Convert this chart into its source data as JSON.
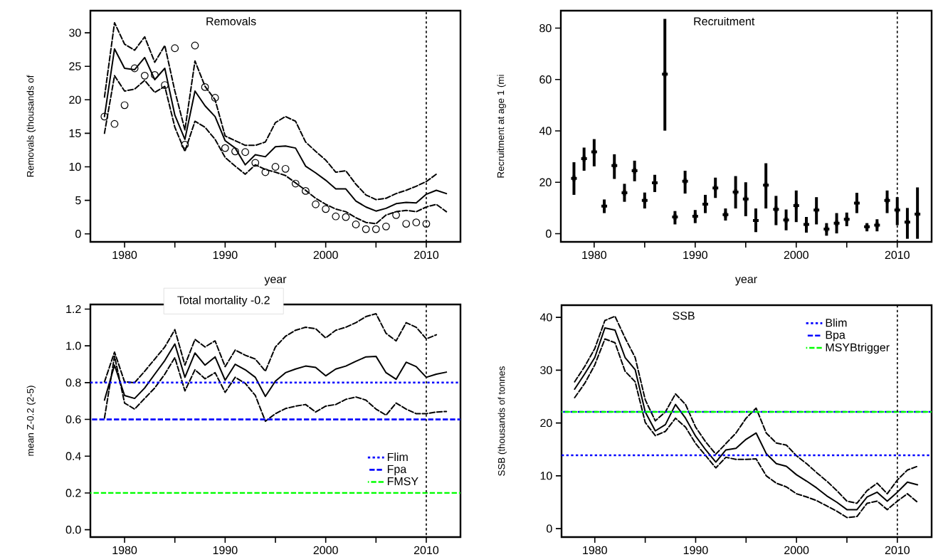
{
  "chart_data": [
    {
      "type": "line",
      "title": "Removals",
      "xlabel": "year",
      "ylabel": "Removals (thousands of",
      "x": [
        1978,
        1979,
        1980,
        1981,
        1982,
        1983,
        1984,
        1985,
        1986,
        1987,
        1988,
        1989,
        1990,
        1991,
        1992,
        1993,
        1994,
        1995,
        1996,
        1997,
        1998,
        1999,
        2000,
        2001,
        2002,
        2003,
        2004,
        2005,
        2006,
        2007,
        2008,
        2009,
        2010,
        2011,
        2012
      ],
      "series": [
        {
          "color": "#000000",
          "line_style": "solid",
          "values": [
            17.5,
            27.6,
            24.7,
            24.5,
            26.3,
            23.0,
            24.7,
            17.7,
            14.1,
            21.3,
            19.1,
            17.5,
            13.9,
            12.8,
            10.3,
            11.8,
            11.5,
            13.0,
            13.1,
            12.8,
            10.1,
            9.1,
            8.0,
            6.7,
            6.7,
            4.9,
            4.0,
            3.4,
            3.8,
            4.5,
            4.7,
            4.6,
            5.9,
            6.5,
            6.0
          ]
        },
        {
          "color": "#000000",
          "line_style": "dashed",
          "values": [
            20.4,
            31.5,
            28.3,
            27.4,
            29.4,
            25.6,
            28.1,
            21.3,
            15.5,
            25.8,
            22.0,
            20.0,
            14.6,
            13.9,
            13.2,
            13.2,
            13.7,
            16.6,
            17.5,
            16.8,
            13.7,
            12.3,
            11.0,
            9.2,
            9.4,
            7.4,
            5.8,
            5.1,
            5.3,
            6.0,
            6.5,
            7.1,
            7.8,
            8.9,
            null
          ]
        },
        {
          "color": "#000000",
          "line_style": "dashed",
          "values": [
            15.0,
            23.6,
            21.3,
            21.6,
            22.9,
            21.1,
            22.0,
            15.9,
            12.3,
            16.8,
            15.9,
            14.1,
            11.4,
            10.1,
            8.9,
            10.3,
            9.6,
            9.2,
            8.7,
            7.6,
            6.5,
            5.3,
            4.4,
            3.7,
            3.3,
            2.4,
            1.7,
            1.5,
            2.8,
            3.3,
            3.5,
            3.3,
            4.0,
            4.4,
            3.3
          ]
        },
        {
          "type": "scatter",
          "color": "#000000",
          "marker": "circle",
          "x": [
            1978,
            1979,
            1980,
            1981,
            1982,
            1983,
            1984,
            1985,
            1986,
            1987,
            1988,
            1989,
            1990,
            1991,
            1992,
            1993,
            1994,
            1995,
            1996,
            1997,
            1998,
            1999,
            2000,
            2001,
            2002,
            2003,
            2004,
            2005,
            2006,
            2007,
            2008,
            2009,
            2010
          ],
          "values": [
            17.5,
            16.4,
            19.2,
            24.7,
            23.6,
            23.7,
            22.2,
            27.7,
            13.3,
            28.1,
            21.9,
            20.3,
            12.8,
            12.3,
            12.2,
            10.6,
            9.2,
            10.0,
            9.7,
            7.5,
            6.4,
            4.4,
            3.7,
            2.6,
            2.5,
            1.4,
            0.7,
            0.7,
            1.1,
            2.8,
            1.5,
            1.7,
            1.5
          ]
        }
      ],
      "xlim": [
        1976.6,
        2013.4
      ],
      "ylim": [
        -1.2,
        33.3
      ],
      "xticks": [
        1980,
        {
          "value": 1985,
          "label": null
        },
        1990,
        {
          "value": 1995,
          "label": null
        },
        2000,
        {
          "value": 2005,
          "label": null
        },
        2010
      ],
      "yticks": [
        0,
        5,
        10,
        15,
        20,
        25,
        30
      ],
      "ref_lines": [
        {
          "axis": "x",
          "value": 2010,
          "color": "#000000",
          "line_style": "dotted"
        }
      ]
    },
    {
      "type": "scatter",
      "title": "Recruitment",
      "xlabel": "year",
      "ylabel": "Recruitment at age 1 (mi",
      "x": [
        1978,
        1979,
        1980,
        1981,
        1982,
        1983,
        1984,
        1985,
        1986,
        1987,
        1988,
        1989,
        1990,
        1991,
        1992,
        1993,
        1994,
        1995,
        1996,
        1997,
        1998,
        1999,
        2000,
        2001,
        2002,
        2003,
        2004,
        2005,
        2006,
        2007,
        2008,
        2009,
        2010,
        2011,
        2012
      ],
      "values": [
        21.5,
        29.2,
        31.8,
        10.7,
        26.5,
        15.9,
        24.5,
        12.9,
        19.8,
        62.1,
        6.5,
        20.4,
        6.8,
        11.5,
        17.8,
        7.4,
        16.2,
        13.5,
        5.1,
        18.9,
        9.5,
        5.3,
        10.9,
        3.6,
        9.2,
        1.8,
        4.1,
        5.6,
        11.9,
        2.7,
        3.3,
        12.9,
        9.2,
        4.5,
        7.6
      ],
      "errors": [
        [
          15.1,
          27.8
        ],
        [
          24.5,
          33.5
        ],
        [
          26.2,
          36.8
        ],
        [
          8.0,
          13.3
        ],
        [
          21.3,
          30.9
        ],
        [
          12.4,
          19.4
        ],
        [
          20.4,
          28.4
        ],
        [
          9.8,
          16.0
        ],
        [
          16.2,
          22.9
        ],
        [
          40.1,
          83.6
        ],
        [
          3.6,
          8.8
        ],
        [
          15.6,
          24.5
        ],
        [
          4.1,
          9.2
        ],
        [
          8.0,
          15.1
        ],
        [
          13.9,
          21.8
        ],
        [
          5.1,
          9.8
        ],
        [
          9.8,
          22.4
        ],
        [
          6.8,
          20.0
        ],
        [
          0.6,
          9.8
        ],
        [
          9.8,
          27.4
        ],
        [
          3.3,
          14.7
        ],
        [
          1.3,
          9.4
        ],
        [
          4.5,
          16.8
        ],
        [
          0.4,
          6.5
        ],
        [
          3.6,
          14.2
        ],
        [
          -0.8,
          4.1
        ],
        [
          0.1,
          8.0
        ],
        [
          2.9,
          8.2
        ],
        [
          8.0,
          15.9
        ],
        [
          0.9,
          4.1
        ],
        [
          0.9,
          5.6
        ],
        [
          8.0,
          16.8
        ],
        [
          3.3,
          14.2
        ],
        [
          -2.0,
          10.0
        ],
        [
          -2.0,
          18.0
        ]
      ],
      "color": "#000000",
      "marker": "cross",
      "xlim": [
        1976.7,
        2013.4
      ],
      "ylim": [
        -3.2,
        86.8
      ],
      "xticks": [
        1980,
        {
          "value": 1985,
          "label": null
        },
        1990,
        {
          "value": 1995,
          "label": null
        },
        2000,
        {
          "value": 2005,
          "label": null
        },
        2010
      ],
      "yticks": [
        0,
        20,
        40,
        60,
        80
      ],
      "ref_lines": [
        {
          "axis": "x",
          "value": 2010,
          "color": "#000000",
          "line_style": "dotted"
        }
      ]
    },
    {
      "type": "line",
      "title": "Total mortality -0.2",
      "ylabel": "mean Z-0.2 (2-5)",
      "x": [
        1978,
        1979,
        1980,
        1981,
        1982,
        1983,
        1984,
        1985,
        1986,
        1987,
        1988,
        1989,
        1990,
        1991,
        1992,
        1993,
        1994,
        1995,
        1996,
        1997,
        1998,
        1999,
        2000,
        2001,
        2002,
        2003,
        2004,
        2005,
        2006,
        2007,
        2008,
        2009,
        2010,
        2011,
        2012
      ],
      "series": [
        {
          "color": "#000000",
          "line_style": "solid",
          "values": [
            0.705,
            0.895,
            0.73,
            0.714,
            0.771,
            0.846,
            0.92,
            1.01,
            0.829,
            0.961,
            0.895,
            0.94,
            0.813,
            0.9,
            0.87,
            0.829,
            0.725,
            0.808,
            0.854,
            0.874,
            0.89,
            0.883,
            0.837,
            0.874,
            0.89,
            0.916,
            0.94,
            0.943,
            0.854,
            0.818,
            0.911,
            0.887,
            0.829,
            0.846,
            0.857
          ]
        },
        {
          "color": "#000000",
          "line_style": "dashed",
          "values": [
            0.804,
            0.966,
            0.804,
            0.8,
            0.862,
            0.928,
            0.994,
            1.088,
            0.895,
            1.035,
            0.994,
            1.027,
            0.887,
            0.977,
            0.949,
            0.928,
            0.862,
            0.994,
            1.052,
            1.085,
            1.101,
            1.093,
            1.043,
            1.085,
            1.101,
            1.126,
            1.159,
            1.175,
            1.068,
            1.027,
            1.126,
            1.101,
            1.038,
            1.06,
            null
          ]
        },
        {
          "color": "#000000",
          "line_style": "dashed",
          "values": [
            0.607,
            0.944,
            0.689,
            0.656,
            0.714,
            0.771,
            0.846,
            0.936,
            0.755,
            0.87,
            0.821,
            0.854,
            0.747,
            0.829,
            0.796,
            0.73,
            0.59,
            0.631,
            0.659,
            0.672,
            0.681,
            0.64,
            0.672,
            0.681,
            0.709,
            0.722,
            0.705,
            0.656,
            0.623,
            0.689,
            0.656,
            0.631,
            0.631,
            0.64,
            0.643
          ]
        }
      ],
      "xlim": [
        1976.6,
        2013.4
      ],
      "ylim": [
        -0.04,
        1.225
      ],
      "xticks": [
        1980,
        {
          "value": 1985,
          "label": null
        },
        1990,
        {
          "value": 1995,
          "label": null
        },
        2000,
        {
          "value": 2005,
          "label": null
        },
        2010
      ],
      "yticks": [
        {
          "value": 0,
          "label": "0.0"
        },
        0.2,
        0.4,
        0.6,
        0.8,
        {
          "value": 1,
          "label": "1.0"
        },
        1.2
      ],
      "legend": "right",
      "ref_lines": [
        {
          "axis": "y",
          "value": 0.8,
          "label": "Flim",
          "color": "#0000ff",
          "line_style": "dotted"
        },
        {
          "axis": "y",
          "value": 0.6,
          "label": "Fpa",
          "color": "#0000ff",
          "line_style": "dashed"
        },
        {
          "axis": "y",
          "value": 0.2,
          "label": "FMSY",
          "color": "#00ff00",
          "line_style": "dashed"
        },
        {
          "axis": "x",
          "value": 2010,
          "color": "#000000",
          "line_style": "dotted"
        }
      ]
    },
    {
      "type": "line",
      "title": "SSB",
      "ylabel": "SSB (thousands of tonnes",
      "x": [
        1978,
        1979,
        1980,
        1981,
        1982,
        1983,
        1984,
        1985,
        1986,
        1987,
        1988,
        1989,
        1990,
        1991,
        1992,
        1993,
        1994,
        1995,
        1996,
        1997,
        1998,
        1999,
        2000,
        2001,
        2002,
        2003,
        2004,
        2005,
        2006,
        2007,
        2008,
        2009,
        2010,
        2011,
        2012
      ],
      "series": [
        {
          "color": "#000000",
          "line_style": "solid",
          "values": [
            26.4,
            29.3,
            32.4,
            38.0,
            37.6,
            32.4,
            30.1,
            22.1,
            18.5,
            19.7,
            23.5,
            20.9,
            17.5,
            14.9,
            12.6,
            14.9,
            15.2,
            16.9,
            18.1,
            14.2,
            12.3,
            11.8,
            10.2,
            9.0,
            7.7,
            6.2,
            5.0,
            3.6,
            3.6,
            6.0,
            6.9,
            5.2,
            6.9,
            8.8,
            8.3
          ]
        },
        {
          "color": "#000000",
          "line_style": "dashed",
          "values": [
            27.8,
            30.7,
            34.1,
            39.4,
            40.2,
            36.1,
            32.4,
            24.4,
            20.4,
            22.1,
            25.5,
            23.5,
            19.2,
            16.4,
            14.1,
            16.1,
            18.1,
            20.9,
            22.8,
            18.1,
            16.2,
            15.8,
            13.8,
            12.3,
            10.6,
            9.0,
            7.2,
            5.2,
            4.8,
            7.2,
            8.6,
            6.6,
            9.2,
            11.1,
            11.8
          ]
        },
        {
          "color": "#000000",
          "line_style": "dashed",
          "values": [
            24.8,
            27.5,
            31.0,
            35.9,
            35.2,
            29.8,
            27.8,
            20.1,
            17.6,
            18.4,
            20.9,
            19.2,
            16.1,
            13.8,
            11.5,
            13.5,
            13.1,
            13.1,
            13.2,
            10.0,
            8.6,
            7.9,
            6.6,
            6.0,
            5.3,
            4.3,
            3.3,
            2.1,
            2.3,
            4.8,
            5.2,
            3.6,
            5.2,
            6.6,
            5.0
          ]
        }
      ],
      "xlim": [
        1976.7,
        2013.4
      ],
      "ylim": [
        -1.6,
        42.3
      ],
      "xticks": [
        1980,
        {
          "value": 1985,
          "label": null
        },
        1990,
        {
          "value": 1995,
          "label": null
        },
        2000,
        {
          "value": 2005,
          "label": null
        },
        2010
      ],
      "yticks": [
        0,
        10,
        20,
        30,
        40
      ],
      "legend": "top right",
      "ref_lines": [
        {
          "axis": "y",
          "value": 13.9,
          "label": "Blim",
          "color": "#0000ff",
          "line_style": "dotted"
        },
        {
          "axis": "y",
          "value": 22.1,
          "label": "Bpa",
          "color": "#0000ff",
          "line_style": "dashed"
        },
        {
          "axis": "y",
          "value": 22.1,
          "label": "MSYBtrigger",
          "color": "#00ff00",
          "line_style": "dashed"
        },
        {
          "axis": "x",
          "value": 2010,
          "color": "#000000",
          "line_style": "dotted"
        }
      ]
    }
  ]
}
